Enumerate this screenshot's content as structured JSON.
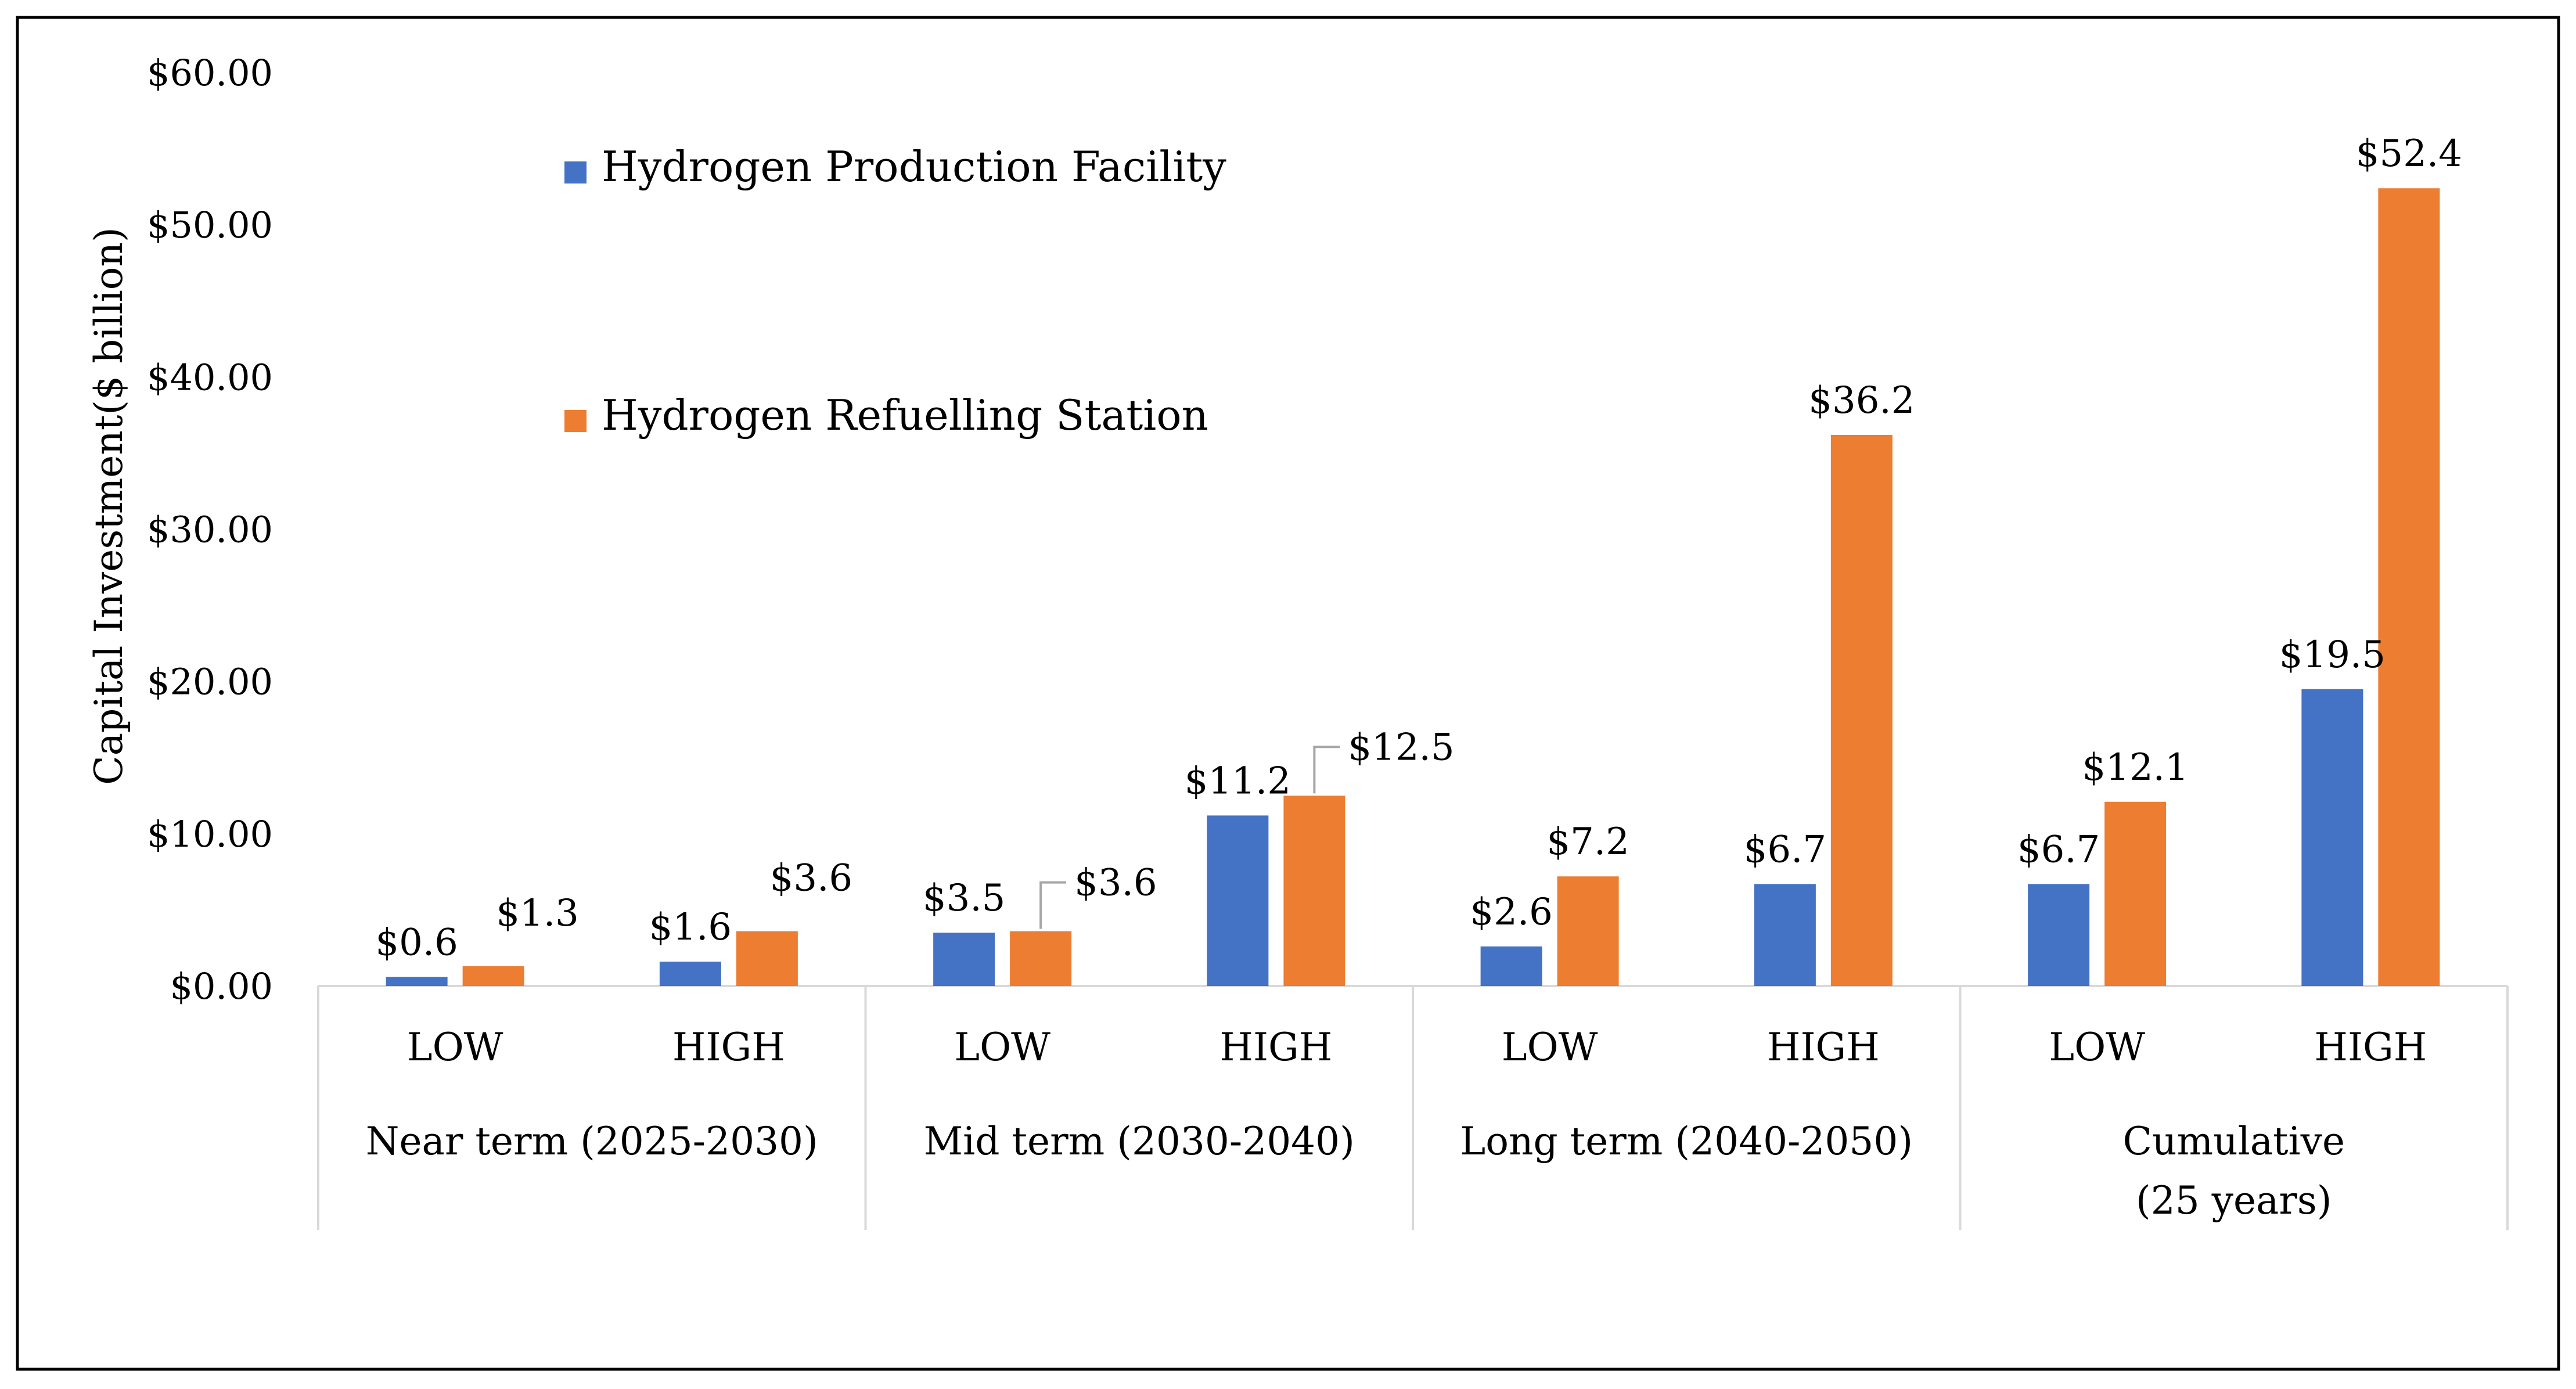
{
  "chart_data": {
    "type": "bar",
    "title": "",
    "xlabel": "",
    "ylabel": "Capital Investment($ billion)",
    "ylim": [
      0,
      60
    ],
    "yticks": [
      0,
      10,
      20,
      30,
      40,
      50,
      60
    ],
    "ytick_labels": [
      "$0.00",
      "$10.00",
      "$20.00",
      "$30.00",
      "$40.00",
      "$50.00",
      "$60.00"
    ],
    "grid": false,
    "legend_position": "top-left",
    "categories": [
      "LOW",
      "HIGH",
      "LOW",
      "HIGH",
      "LOW",
      "HIGH",
      "LOW",
      "HIGH"
    ],
    "groups": [
      {
        "label_lines": [
          "Near term (2025-2030)"
        ],
        "span": 2
      },
      {
        "label_lines": [
          "Mid term (2030-2040)"
        ],
        "span": 2
      },
      {
        "label_lines": [
          "Long term (2040-2050)"
        ],
        "span": 2
      },
      {
        "label_lines": [
          "Cumulative",
          "(25 years)"
        ],
        "span": 2
      }
    ],
    "series": [
      {
        "name": "Hydrogen Production Facility",
        "color": "#4472C4",
        "values": [
          0.6,
          1.6,
          3.5,
          11.2,
          2.6,
          6.7,
          6.7,
          19.5
        ],
        "labels": [
          "$0.6",
          "$1.6",
          "$3.5",
          "$11.2",
          "$2.6",
          "$6.7",
          "$6.7",
          "$19.5"
        ]
      },
      {
        "name": "Hydrogen Refuelling Station",
        "color": "#ED7D31",
        "values": [
          1.3,
          3.6,
          3.6,
          12.5,
          7.2,
          36.2,
          12.1,
          52.4
        ],
        "labels": [
          "$1.3",
          "$3.6",
          "$3.6",
          "$12.5",
          "$7.2",
          "$36.2",
          "$12.1",
          "$52.4"
        ]
      }
    ]
  }
}
